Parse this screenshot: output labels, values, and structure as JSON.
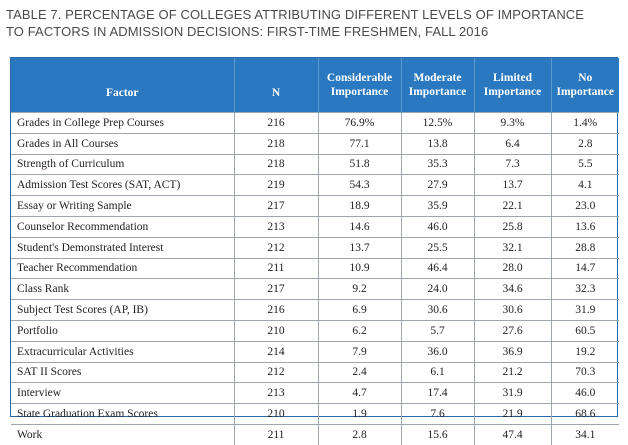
{
  "caption": {
    "line1": "TABLE 7. PERCENTAGE OF COLLEGES ATTRIBUTING DIFFERENT LEVELS OF IMPORTANCE",
    "line2": "TO FACTORS IN ADMISSION DECISIONS: FIRST-TIME FRESHMEN, FALL 2016"
  },
  "table": {
    "headers": {
      "factor": "Factor",
      "n": "N",
      "considerable_1": "Considerable",
      "considerable_2": "Importance",
      "moderate_1": "Moderate",
      "moderate_2": "Importance",
      "limited_1": "Limited",
      "limited_2": "Importance",
      "no_1": "No",
      "no_2": "Importance"
    },
    "rows": [
      {
        "factor": "Grades in College Prep Courses",
        "n": "216",
        "considerable": "76.9%",
        "moderate": "12.5%",
        "limited": "9.3%",
        "none": "1.4%"
      },
      {
        "factor": "Grades in All Courses",
        "n": "218",
        "considerable": "77.1",
        "moderate": "13.8",
        "limited": "6.4",
        "none": "2.8"
      },
      {
        "factor": "Strength of Curriculum",
        "n": "218",
        "considerable": "51.8",
        "moderate": "35.3",
        "limited": "7.3",
        "none": "5.5"
      },
      {
        "factor": "Admission Test Scores (SAT, ACT)",
        "n": "219",
        "considerable": "54.3",
        "moderate": "27.9",
        "limited": "13.7",
        "none": "4.1"
      },
      {
        "factor": "Essay or Writing Sample",
        "n": "217",
        "considerable": "18.9",
        "moderate": "35.9",
        "limited": "22.1",
        "none": "23.0"
      },
      {
        "factor": "Counselor Recommendation",
        "n": "213",
        "considerable": "14.6",
        "moderate": "46.0",
        "limited": "25.8",
        "none": "13.6"
      },
      {
        "factor": "Student's Demonstrated Interest",
        "n": "212",
        "considerable": "13.7",
        "moderate": "25.5",
        "limited": "32.1",
        "none": "28.8"
      },
      {
        "factor": "Teacher Recommendation",
        "n": "211",
        "considerable": "10.9",
        "moderate": "46.4",
        "limited": "28.0",
        "none": "14.7"
      },
      {
        "factor": "Class Rank",
        "n": "217",
        "considerable": "9.2",
        "moderate": "24.0",
        "limited": "34.6",
        "none": "32.3"
      },
      {
        "factor": "Subject Test Scores (AP, IB)",
        "n": "216",
        "considerable": "6.9",
        "moderate": "30.6",
        "limited": "30.6",
        "none": "31.9"
      },
      {
        "factor": "Portfolio",
        "n": "210",
        "considerable": "6.2",
        "moderate": "5.7",
        "limited": "27.6",
        "none": "60.5"
      },
      {
        "factor": "Extracurricular Activities",
        "n": "214",
        "considerable": "7.9",
        "moderate": "36.0",
        "limited": "36.9",
        "none": "19.2"
      },
      {
        "factor": "SAT II Scores",
        "n": "212",
        "considerable": "2.4",
        "moderate": "6.1",
        "limited": "21.2",
        "none": "70.3"
      },
      {
        "factor": "Interview",
        "n": "213",
        "considerable": "4.7",
        "moderate": "17.4",
        "limited": "31.9",
        "none": "46.0"
      },
      {
        "factor": "State Graduation Exam Scores",
        "n": "210",
        "considerable": "1.9",
        "moderate": "7.6",
        "limited": "21.9",
        "none": "68.6"
      },
      {
        "factor": "Work",
        "n": "211",
        "considerable": "2.8",
        "moderate": "15.6",
        "limited": "47.4",
        "none": "34.1"
      }
    ]
  },
  "colors": {
    "header_bg": "#2a78bf",
    "frame_border": "#2b6aa6",
    "caption_text": "#4a4a4a"
  }
}
